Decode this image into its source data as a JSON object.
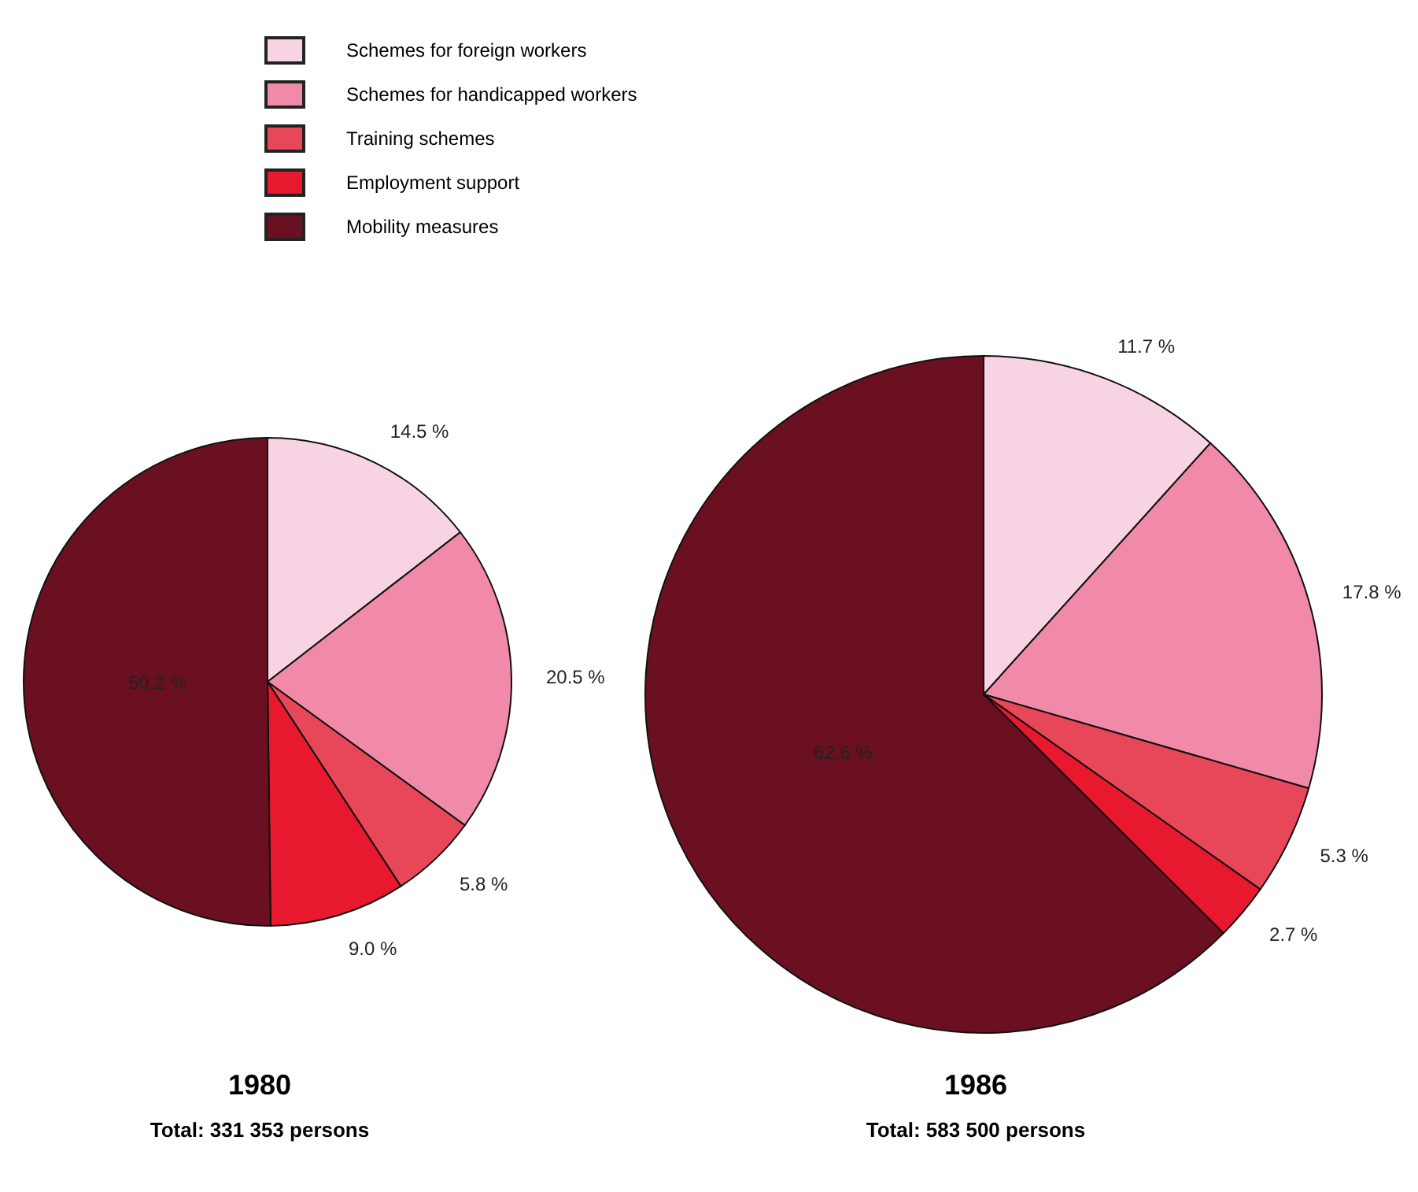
{
  "chart_data": [
    {
      "type": "pie",
      "title": "1980",
      "subtitle": "Total: 331 353 persons",
      "legend": "top",
      "categories": [
        "Schemes for foreign workers",
        "Schemes for handicapped workers",
        "Training schemes",
        "Employment support",
        "Mobility measures"
      ],
      "values": [
        14.5,
        20.5,
        5.8,
        9.0,
        50.2
      ],
      "colors": [
        "#f8d3e3",
        "#f08aa8",
        "#e8475a",
        "#e8192e",
        "#6b1020"
      ],
      "value_labels": [
        "14.5 %",
        "20.5 %",
        "5.8 %",
        "9.0 %",
        "50.2 %"
      ]
    },
    {
      "type": "pie",
      "title": "1986",
      "subtitle": "Total: 583 500 persons",
      "categories": [
        null,
        null,
        null,
        null,
        null
      ],
      "values": [
        11.7,
        17.8,
        5.3,
        2.7,
        62.6
      ],
      "colors": [
        "#f8d3e3",
        "#f08aa8",
        "#e8475a",
        "#e8192e",
        "#6b1020"
      ],
      "value_labels": [
        "11.7 %",
        "17.8 %",
        "5.3 %",
        "2.7 %",
        "62.6 %"
      ]
    }
  ]
}
